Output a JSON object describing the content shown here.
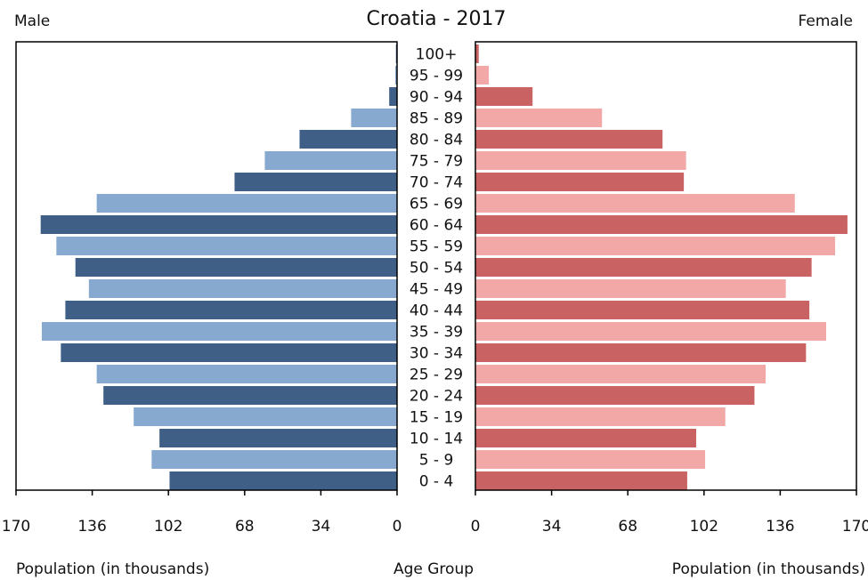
{
  "chart_data": {
    "type": "bar",
    "subtype": "population-pyramid",
    "title": "Croatia - 2017",
    "left_label": "Male",
    "right_label": "Female",
    "xlabel_left": "Population (in thousands)",
    "xlabel_center": "Age Group",
    "xlabel_right": "Population (in thousands)",
    "xlim": [
      0,
      170
    ],
    "ticks": [
      0,
      34,
      68,
      102,
      136,
      170
    ],
    "categories": [
      "100+",
      "95 - 99",
      "90 - 94",
      "85 - 89",
      "80 - 84",
      "75 - 79",
      "70 - 74",
      "65 - 69",
      "60 - 64",
      "55 - 59",
      "50 - 54",
      "45 - 49",
      "40 - 44",
      "35 - 39",
      "30 - 34",
      "25 - 29",
      "20 - 24",
      "15 - 19",
      "10 - 14",
      "5 - 9",
      "0 - 4"
    ],
    "series": [
      {
        "name": "Male",
        "values": [
          0.5,
          0.8,
          3.5,
          20.5,
          43.5,
          59,
          72.5,
          134,
          159,
          152,
          143.5,
          137.5,
          148,
          158.5,
          150,
          134,
          131,
          117.5,
          106,
          109.5,
          101.5
        ],
        "colors": [
          "#3f5f87",
          "#87a9d0"
        ]
      },
      {
        "name": "Female",
        "values": [
          1.5,
          6,
          25.5,
          56.5,
          83.5,
          94,
          93,
          142.5,
          166,
          160.5,
          150,
          138.5,
          149,
          156.5,
          147.5,
          129.5,
          124.5,
          111.5,
          98.5,
          102.5,
          94.5
        ],
        "colors": [
          "#c96363",
          "#f3a8a8"
        ]
      }
    ],
    "grid": false
  }
}
